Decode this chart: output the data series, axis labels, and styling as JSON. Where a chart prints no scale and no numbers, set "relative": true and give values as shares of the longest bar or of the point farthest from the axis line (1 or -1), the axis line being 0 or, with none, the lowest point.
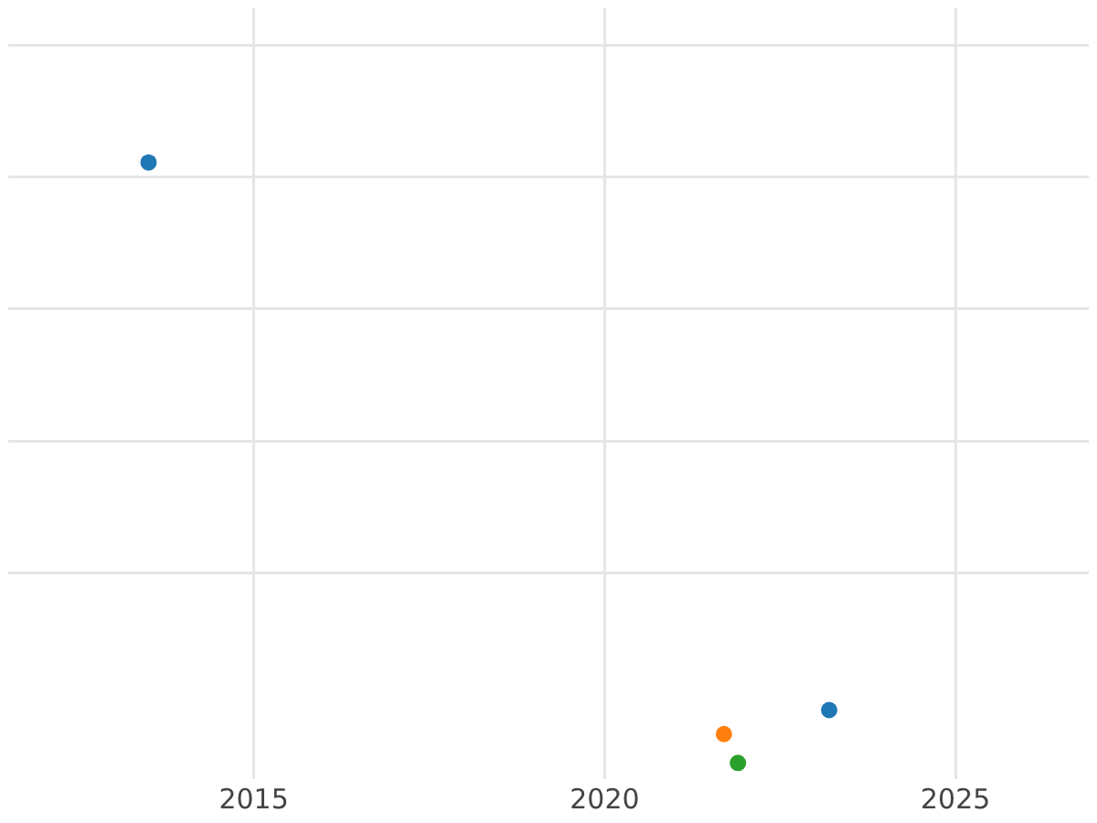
{
  "chart_data": {
    "type": "scatter",
    "relative": true,
    "xlim": [
      2011.5,
      2026.9
    ],
    "xticks": [
      2015,
      2020,
      2025
    ],
    "grid": true,
    "legend": false,
    "marker": "circle",
    "series": [
      {
        "color": "#1f77b4",
        "x": [
          2013.5,
          2023.2
        ],
        "values": [
          1,
          0.088
        ]
      },
      {
        "color": "#ff7f0e",
        "x": [
          2021.7
        ],
        "values": [
          0.048
        ]
      },
      {
        "color": "#2ca02c",
        "x": [
          2021.9
        ],
        "values": [
          0
        ]
      }
    ]
  }
}
